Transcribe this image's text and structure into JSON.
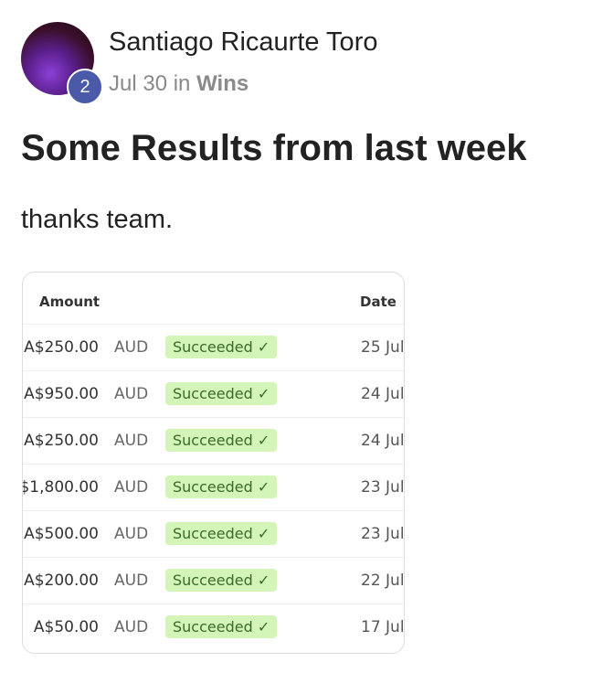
{
  "post": {
    "author": "Santiago Ricaurte Toro",
    "badge_count": "2",
    "date": "Jul 30",
    "in_label": "in",
    "category": "Wins",
    "title": "Some Results from last week",
    "body": "thanks team."
  },
  "table": {
    "headers": {
      "amount": "Amount",
      "date": "Date"
    },
    "rows": [
      {
        "amount": "A$250.00",
        "currency": "AUD",
        "status": "Succeeded ✓",
        "date": "25 Jul"
      },
      {
        "amount": "A$950.00",
        "currency": "AUD",
        "status": "Succeeded ✓",
        "date": "24 Jul"
      },
      {
        "amount": "A$250.00",
        "currency": "AUD",
        "status": "Succeeded ✓",
        "date": "24 Jul"
      },
      {
        "amount": "$1,800.00",
        "currency": "AUD",
        "status": "Succeeded ✓",
        "date": "23 Jul"
      },
      {
        "amount": "A$500.00",
        "currency": "AUD",
        "status": "Succeeded ✓",
        "date": "23 Jul"
      },
      {
        "amount": "A$200.00",
        "currency": "AUD",
        "status": "Succeeded ✓",
        "date": "22 Jul"
      },
      {
        "amount": "A$50.00",
        "currency": "AUD",
        "status": "Succeeded ✓",
        "date": "17 Jul"
      }
    ]
  },
  "colors": {
    "badge": "#4a5aa8",
    "status_bg": "#d4f5b8",
    "status_text": "#3a6b2a"
  }
}
